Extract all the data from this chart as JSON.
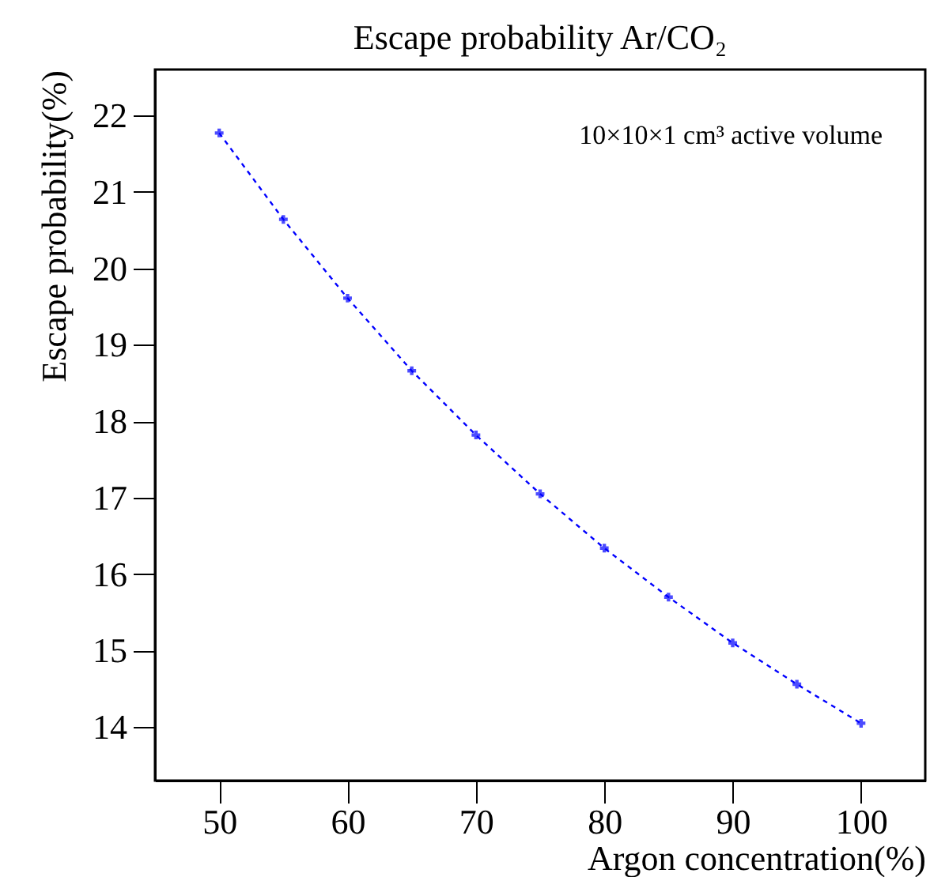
{
  "chart_data": {
    "type": "line",
    "title": "Escape probability Ar/CO₂",
    "xlabel": "Argon concentration(%)",
    "ylabel": "Escape probability(%)",
    "annotations": [
      "10×10×1 cm³ active volume"
    ],
    "x": [
      50,
      55,
      60,
      65,
      70,
      75,
      80,
      85,
      90,
      95,
      100
    ],
    "series": [
      {
        "color": "#0000ff",
        "values": [
          21.77,
          20.64,
          19.61,
          18.66,
          17.82,
          17.05,
          16.34,
          15.7,
          15.1,
          14.56,
          14.05
        ]
      }
    ],
    "xlim": [
      45,
      105
    ],
    "xticks": [
      50,
      60,
      70,
      80,
      90,
      100
    ],
    "ylim": [
      13.3,
      22.6
    ],
    "yticks": [
      14,
      15,
      16,
      17,
      18,
      19,
      20,
      21,
      22
    ],
    "grid": false,
    "legend": false,
    "marker": "cross",
    "line_style": "dashed"
  }
}
